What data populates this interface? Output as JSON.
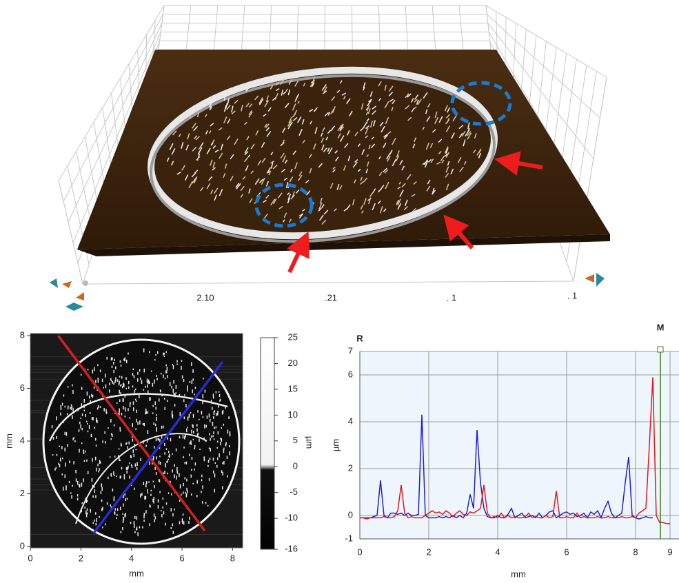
{
  "chart_data": [
    {
      "type": "surface3d",
      "axis_labels": [
        "2.10",
        ".21",
        ". 1",
        ". 1"
      ]
    },
    {
      "type": "heatmap",
      "xlabel": "mm",
      "ylabel": "mm",
      "xlim": [
        0,
        8.4
      ],
      "ylim": [
        0,
        8
      ],
      "xticks": [
        0,
        2,
        4,
        6,
        8
      ],
      "yticks": [
        0,
        2,
        4,
        6,
        8
      ],
      "colorbar_label": "µm",
      "clim": [
        -16,
        25
      ],
      "cticks": [
        25,
        20,
        15,
        10,
        5,
        0,
        -5,
        -10,
        -16
      ],
      "profile_lines": [
        {
          "color": "#d42020",
          "x": [
            1.1,
            6.9
          ],
          "y": [
            8,
            0.6
          ]
        },
        {
          "color": "#2a2ad8",
          "x": [
            2.5,
            7.6
          ],
          "y": [
            0.5,
            7
          ]
        }
      ]
    },
    {
      "type": "line",
      "xlabel": "mm",
      "ylabel": "µm",
      "xlim": [
        0,
        9
      ],
      "ylim": [
        -1,
        7
      ],
      "xticks": [
        0,
        2,
        4,
        6,
        8,
        9
      ],
      "yticks": [
        -1,
        0,
        2,
        4,
        6,
        7
      ],
      "grid": true,
      "cursor_label": "R",
      "cursor_color": "#e02020",
      "marker": {
        "label": "M",
        "x": 8.72,
        "color": "#3a7d1e"
      },
      "x": [
        0,
        0.1,
        0.2,
        0.3,
        0.4,
        0.5,
        0.6,
        0.7,
        0.8,
        0.9,
        1,
        1.1,
        1.2,
        1.3,
        1.4,
        1.5,
        1.6,
        1.7,
        1.8,
        1.9,
        2,
        2.1,
        2.2,
        2.3,
        2.4,
        2.5,
        2.6,
        2.7,
        2.8,
        2.9,
        3,
        3.1,
        3.2,
        3.3,
        3.4,
        3.5,
        3.6,
        3.7,
        3.8,
        3.9,
        4,
        4.1,
        4.2,
        4.3,
        4.4,
        4.5,
        4.6,
        4.7,
        4.8,
        4.9,
        5,
        5.1,
        5.2,
        5.3,
        5.4,
        5.5,
        5.6,
        5.7,
        5.8,
        5.9,
        6,
        6.1,
        6.2,
        6.3,
        6.4,
        6.5,
        6.6,
        6.7,
        6.8,
        6.9,
        7,
        7.1,
        7.2,
        7.3,
        7.4,
        7.5,
        7.6,
        7.7,
        7.8,
        7.9,
        8,
        8.1,
        8.2,
        8.3,
        8.4,
        8.5,
        8.6,
        8.7,
        8.8,
        8.9,
        9
      ],
      "series": [
        {
          "color": "#1f1fd6",
          "values": [
            -0.1,
            -0.1,
            -0.1,
            -0.1,
            -0.05,
            0,
            1.5,
            0,
            -0.1,
            0.1,
            0.1,
            0.05,
            0.1,
            0,
            0.1,
            0,
            0,
            0.05,
            4.3,
            0,
            -0.1,
            -0.1,
            -0.1,
            -0.05,
            -0.1,
            -0.05,
            -0.1,
            0,
            -0.1,
            0,
            -0.1,
            0.1,
            0.9,
            0.3,
            3.65,
            1.4,
            0.3,
            -0.05,
            -0.1,
            -0.1,
            0,
            -0.1,
            -0.1,
            0.05,
            0.3,
            -0.1,
            0,
            0.1,
            -0.1,
            -0.05,
            0,
            -0.1,
            0.1,
            -0.1,
            0,
            0.15,
            0.2,
            -0.1,
            0,
            0.1,
            0.15,
            0.05,
            0.1,
            -0.05,
            0,
            0.1,
            -0.1,
            0.15,
            0.05,
            0.2,
            -0.1,
            0.3,
            0.6,
            0.1,
            -0.1,
            0,
            0.1,
            1.4,
            2.5,
            0,
            -0.1,
            -0.15,
            -0.1,
            -0.05,
            -0.1,
            -0.1,
            null,
            null,
            null,
            null,
            null
          ]
        },
        {
          "color": "#e01818",
          "values": [
            -0.1,
            -0.1,
            -0.15,
            -0.1,
            -0.1,
            -0.1,
            -0.1,
            -0.05,
            -0.1,
            -0.1,
            -0.05,
            0.2,
            1.3,
            0.1,
            -0.1,
            -0.05,
            -0.1,
            -0.1,
            -0.1,
            0,
            0.1,
            0.2,
            0.1,
            0.15,
            0.05,
            0.2,
            0.1,
            -0.05,
            0.1,
            0.2,
            0.05,
            0,
            0.15,
            0.1,
            0.2,
            0.3,
            1.3,
            0.1,
            -0.1,
            -0.05,
            -0.1,
            0.1,
            -0.1,
            0,
            -0.1,
            -0.05,
            -0.1,
            -0.1,
            -0.05,
            0.1,
            -0.1,
            -0.05,
            -0.1,
            -0.1,
            0,
            -0.1,
            -0.05,
            1.05,
            -0.1,
            -0.1,
            -0.05,
            -0.1,
            -0.1,
            0.1,
            -0.1,
            -0.05,
            -0.1,
            -0.1,
            -0.1,
            -0.05,
            -0.1,
            -0.1,
            -0.05,
            -0.1,
            -0.1,
            -0.1,
            -0.05,
            -0.1,
            -0.1,
            -0.05,
            -0.1,
            0.1,
            0.2,
            0.3,
            3.0,
            5.9,
            0,
            -0.3,
            -0.3,
            -0.35,
            -0.35
          ]
        }
      ]
    }
  ]
}
